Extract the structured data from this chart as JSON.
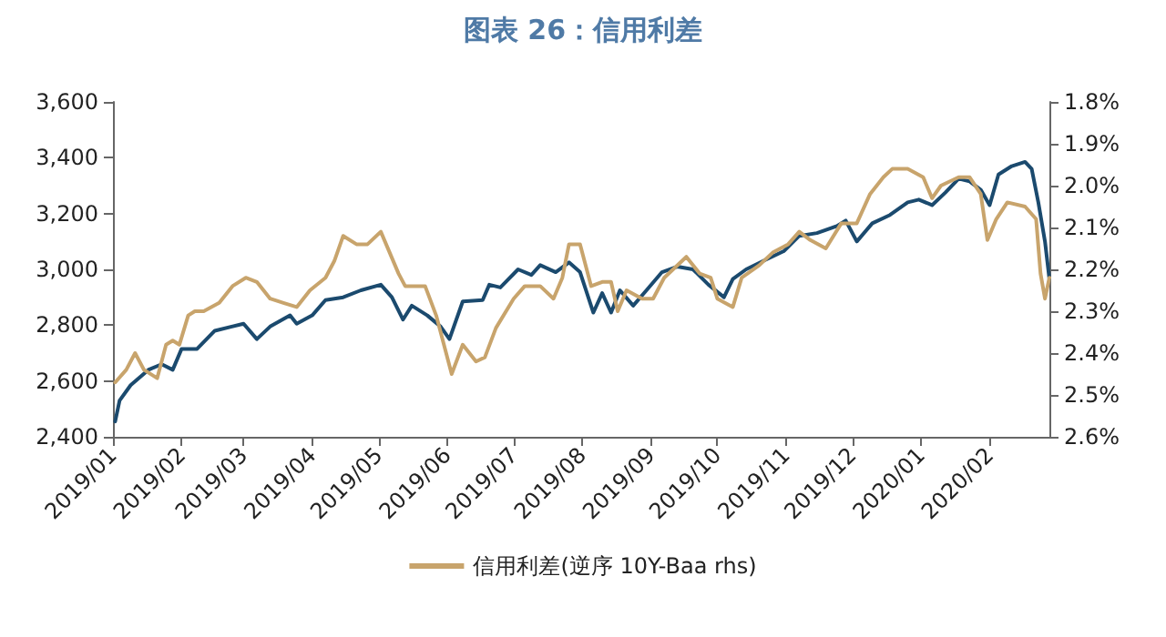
{
  "chart_data": {
    "type": "line",
    "title": "图表 26：信用利差",
    "xlim": [
      "2019-01-01",
      "2020-02-28"
    ],
    "xticks": [
      {
        "value": "2019-01",
        "label": "2019/01"
      },
      {
        "value": "2019-02",
        "label": "2019/02"
      },
      {
        "value": "2019-03",
        "label": "2019/03"
      },
      {
        "value": "2019-04",
        "label": "2019/04"
      },
      {
        "value": "2019-05",
        "label": "2019/05"
      },
      {
        "value": "2019-06",
        "label": "2019/06"
      },
      {
        "value": "2019-07",
        "label": "2019/07"
      },
      {
        "value": "2019-08",
        "label": "2019/08"
      },
      {
        "value": "2019-09",
        "label": "2019/09"
      },
      {
        "value": "2019-10",
        "label": "2019/10"
      },
      {
        "value": "2019-11",
        "label": "2019/11"
      },
      {
        "value": "2019-12",
        "label": "2019/12"
      },
      {
        "value": "2020-01",
        "label": "2020/01"
      },
      {
        "value": "2020-02",
        "label": "2020/02"
      }
    ],
    "ylim": [
      2400,
      3600
    ],
    "yticks": [
      {
        "value": 2400,
        "label": "2,400"
      },
      {
        "value": 2600,
        "label": "2,600"
      },
      {
        "value": 2800,
        "label": "2,800"
      },
      {
        "value": 3000,
        "label": "3,000"
      },
      {
        "value": 3200,
        "label": "3,200"
      },
      {
        "value": 3400,
        "label": "3,400"
      },
      {
        "value": 3600,
        "label": "3,600"
      }
    ],
    "y2lim": [
      2.6,
      1.8
    ],
    "y2ticks": [
      {
        "value": 1.8,
        "label": "1.8%"
      },
      {
        "value": 1.9,
        "label": "1.9%"
      },
      {
        "value": 2.0,
        "label": "2.0%"
      },
      {
        "value": 2.1,
        "label": "2.1%"
      },
      {
        "value": 2.2,
        "label": "2.2%"
      },
      {
        "value": 2.3,
        "label": "2.3%"
      },
      {
        "value": 2.4,
        "label": "2.4%"
      },
      {
        "value": 2.5,
        "label": "2.5%"
      },
      {
        "value": 2.6,
        "label": "2.6%"
      }
    ],
    "grid": false,
    "legend": "bottom",
    "marker": "none",
    "line_style": "solid",
    "series": [
      {
        "color": "#1b4a6e",
        "x": [
          "2019-01-02",
          "2019-01-04",
          "2019-01-09",
          "2019-01-17",
          "2019-01-23",
          "2019-01-28",
          "2019-02-01",
          "2019-02-08",
          "2019-02-16",
          "2019-03-01",
          "2019-03-07",
          "2019-03-13",
          "2019-03-22",
          "2019-03-25",
          "2019-04-01",
          "2019-04-07",
          "2019-04-15",
          "2019-04-23",
          "2019-05-02",
          "2019-05-07",
          "2019-05-12",
          "2019-05-16",
          "2019-05-23",
          "2019-05-29",
          "2019-06-02",
          "2019-06-08",
          "2019-06-17",
          "2019-06-20",
          "2019-06-25",
          "2019-07-03",
          "2019-07-09",
          "2019-07-13",
          "2019-07-20",
          "2019-07-26",
          "2019-07-31",
          "2019-08-06",
          "2019-08-10",
          "2019-08-14",
          "2019-08-18",
          "2019-08-24",
          "2019-08-30",
          "2019-09-06",
          "2019-09-13",
          "2019-09-20",
          "2019-09-27",
          "2019-10-04",
          "2019-10-08",
          "2019-10-14",
          "2019-10-23",
          "2019-10-31",
          "2019-11-07",
          "2019-11-15",
          "2019-11-24",
          "2019-11-28",
          "2019-12-03",
          "2019-12-10",
          "2019-12-18",
          "2019-12-26",
          "2019-12-31",
          "2020-01-06",
          "2020-01-12",
          "2020-01-18",
          "2020-01-23",
          "2020-01-28",
          "2020-02-01",
          "2020-02-05",
          "2020-02-11",
          "2020-02-17",
          "2020-02-20",
          "2020-02-23",
          "2020-02-26",
          "2020-02-28"
        ],
        "values": [
          2455,
          2530,
          2585,
          2640,
          2660,
          2640,
          2715,
          2715,
          2780,
          2805,
          2750,
          2795,
          2835,
          2805,
          2835,
          2890,
          2900,
          2925,
          2945,
          2900,
          2820,
          2870,
          2835,
          2795,
          2750,
          2885,
          2890,
          2945,
          2935,
          3000,
          2980,
          3015,
          2990,
          3025,
          2990,
          2845,
          2915,
          2845,
          2925,
          2870,
          2925,
          2990,
          3010,
          3000,
          2945,
          2900,
          2965,
          3000,
          3035,
          3065,
          3120,
          3130,
          3155,
          3175,
          3100,
          3165,
          3195,
          3240,
          3250,
          3230,
          3275,
          3325,
          3315,
          3285,
          3230,
          3340,
          3370,
          3385,
          3360,
          3240,
          3100,
          2965
        ]
      },
      {
        "name": "信用利差(逆序 10Y-Baa rhs)",
        "color": "#c8a46c",
        "axis": "y2",
        "x": [
          "2019-01-02",
          "2019-01-07",
          "2019-01-11",
          "2019-01-15",
          "2019-01-21",
          "2019-01-25",
          "2019-01-28",
          "2019-01-31",
          "2019-02-04",
          "2019-02-07",
          "2019-02-11",
          "2019-02-18",
          "2019-02-24",
          "2019-03-02",
          "2019-03-07",
          "2019-03-13",
          "2019-03-19",
          "2019-03-25",
          "2019-03-31",
          "2019-04-07",
          "2019-04-11",
          "2019-04-15",
          "2019-04-21",
          "2019-04-26",
          "2019-05-02",
          "2019-05-06",
          "2019-05-10",
          "2019-05-13",
          "2019-05-22",
          "2019-05-27",
          "2019-06-03",
          "2019-06-08",
          "2019-06-14",
          "2019-06-18",
          "2019-06-23",
          "2019-07-01",
          "2019-07-06",
          "2019-07-13",
          "2019-07-19",
          "2019-07-23",
          "2019-07-26",
          "2019-07-31",
          "2019-08-05",
          "2019-08-10",
          "2019-08-14",
          "2019-08-17",
          "2019-08-21",
          "2019-08-28",
          "2019-09-02",
          "2019-09-07",
          "2019-09-17",
          "2019-09-23",
          "2019-09-28",
          "2019-10-01",
          "2019-10-08",
          "2019-10-12",
          "2019-10-20",
          "2019-10-26",
          "2019-11-02",
          "2019-11-07",
          "2019-11-12",
          "2019-11-19",
          "2019-11-26",
          "2019-12-03",
          "2019-12-09",
          "2019-12-15",
          "2019-12-19",
          "2019-12-26",
          "2020-01-02",
          "2020-01-06",
          "2020-01-10",
          "2020-01-18",
          "2020-01-23",
          "2020-01-28",
          "2020-01-31",
          "2020-02-04",
          "2020-02-09",
          "2020-02-17",
          "2020-02-22",
          "2020-02-24",
          "2020-02-26",
          "2020-02-28"
        ],
        "values": [
          2.47,
          2.44,
          2.4,
          2.44,
          2.46,
          2.38,
          2.37,
          2.38,
          2.31,
          2.3,
          2.3,
          2.28,
          2.24,
          2.22,
          2.23,
          2.27,
          2.28,
          2.29,
          2.25,
          2.22,
          2.18,
          2.12,
          2.14,
          2.14,
          2.11,
          2.16,
          2.21,
          2.24,
          2.24,
          2.31,
          2.45,
          2.38,
          2.42,
          2.41,
          2.34,
          2.27,
          2.24,
          2.24,
          2.27,
          2.22,
          2.14,
          2.14,
          2.24,
          2.23,
          2.23,
          2.3,
          2.25,
          2.27,
          2.27,
          2.22,
          2.17,
          2.21,
          2.22,
          2.27,
          2.29,
          2.22,
          2.19,
          2.16,
          2.14,
          2.11,
          2.13,
          2.15,
          2.09,
          2.09,
          2.02,
          1.98,
          1.96,
          1.96,
          1.98,
          2.03,
          2.0,
          1.98,
          1.98,
          2.02,
          2.13,
          2.08,
          2.04,
          2.05,
          2.08,
          2.21,
          2.27,
          2.22
        ]
      }
    ]
  }
}
